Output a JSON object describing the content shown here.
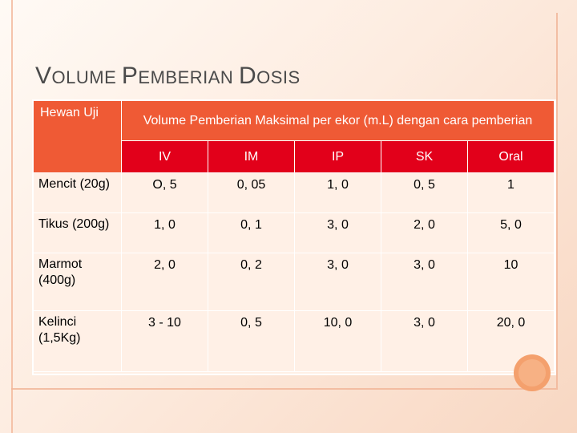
{
  "slide": {
    "title_words": [
      "Volume",
      "Pemberian",
      "dosis"
    ]
  },
  "table": {
    "header": {
      "hewan": "Hewan Uji",
      "volume": "Volume Pemberian Maksimal per ekor (m.L) dengan cara pemberian",
      "routes": [
        "IV",
        "IM",
        "IP",
        "SK",
        "Oral"
      ]
    },
    "rows": [
      {
        "label": "Mencit (20g)",
        "values": [
          "O, 5",
          "0, 05",
          "1, 0",
          "0, 5",
          "1"
        ]
      },
      {
        "label": "Tikus (200g)",
        "values": [
          "1, 0",
          "0, 1",
          "3, 0",
          "2, 0",
          "5, 0"
        ]
      },
      {
        "label": "Marmot (400g)",
        "values": [
          "2, 0",
          "0, 2",
          "3, 0",
          "3, 0",
          "10"
        ]
      },
      {
        "label": "Kelinci (1,5Kg)",
        "values": [
          "3 - 10",
          "0, 5",
          "10, 0",
          "3, 0",
          "20, 0"
        ]
      }
    ]
  },
  "colors": {
    "header_orange": "#ef5a35",
    "header_red": "#e2001a",
    "body_fill": "#fff0e6",
    "accent_circle": "#f4a06d"
  }
}
